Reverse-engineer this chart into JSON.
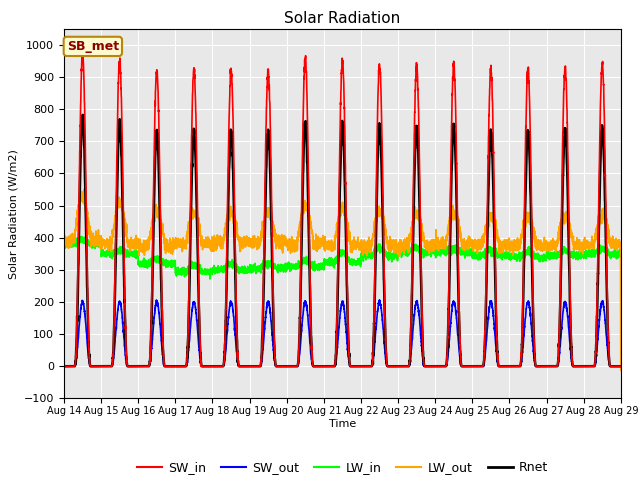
{
  "title": "Solar Radiation",
  "ylabel": "Solar Radiation (W/m2)",
  "xlabel": "Time",
  "ylim": [
    -100,
    1050
  ],
  "xlim": [
    0,
    15
  ],
  "x_tick_labels": [
    "Aug 14",
    "Aug 15",
    "Aug 16",
    "Aug 17",
    "Aug 18",
    "Aug 19",
    "Aug 20",
    "Aug 21",
    "Aug 22",
    "Aug 23",
    "Aug 24",
    "Aug 25",
    "Aug 26",
    "Aug 27",
    "Aug 28",
    "Aug 29"
  ],
  "yticks": [
    -100,
    0,
    100,
    200,
    300,
    400,
    500,
    600,
    700,
    800,
    900,
    1000
  ],
  "annotation": "SB_met",
  "annotation_color": "#8B0000",
  "annotation_bg": "#FFFACD",
  "bg_color": "#E8E8E8",
  "series": {
    "SW_in": {
      "color": "red",
      "lw": 1.2
    },
    "SW_out": {
      "color": "blue",
      "lw": 1.2
    },
    "LW_in": {
      "color": "#00FF00",
      "lw": 1.2
    },
    "LW_out": {
      "color": "orange",
      "lw": 1.2
    },
    "Rnet": {
      "color": "black",
      "lw": 1.8
    }
  },
  "n_days": 15,
  "pts_per_day": 288,
  "sw_in_peaks": [
    970,
    950,
    920,
    920,
    920,
    920,
    960,
    950,
    940,
    930,
    940,
    920,
    920,
    930,
    940
  ],
  "rnet_peaks": [
    780,
    760,
    730,
    730,
    730,
    730,
    760,
    750,
    750,
    745,
    750,
    730,
    730,
    735,
    745
  ]
}
